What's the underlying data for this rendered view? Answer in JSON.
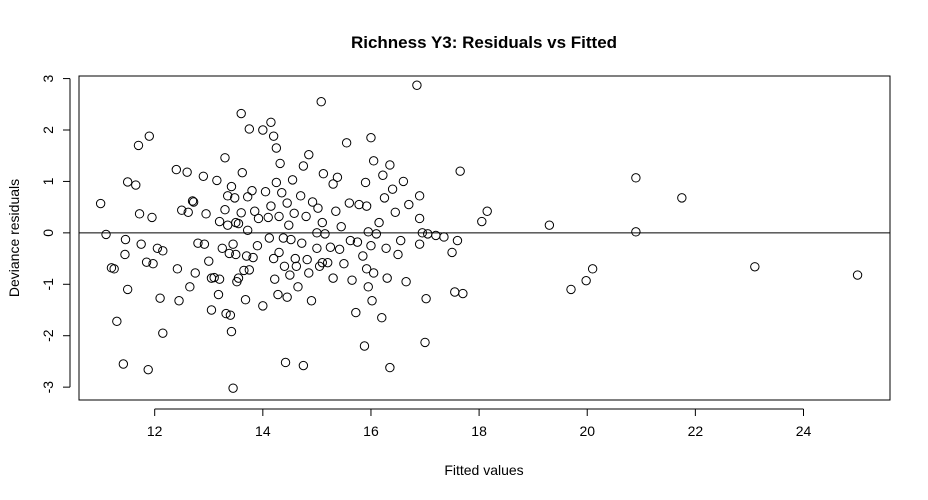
{
  "chart_data": {
    "type": "scatter",
    "title": "Richness Y3: Residuals vs Fitted",
    "xlabel": "Fitted values",
    "ylabel": "Deviance residuals",
    "xlim": [
      10.6,
      25.6
    ],
    "ylim": [
      -3.25,
      3.05
    ],
    "xticks": [
      12,
      14,
      16,
      18,
      20,
      22,
      24
    ],
    "yticks": [
      -3,
      -2,
      -1,
      0,
      1,
      2,
      3
    ],
    "reference_line_y": 0,
    "marker": "open-circle",
    "grid": false,
    "points": [
      [
        11.0,
        0.57
      ],
      [
        11.1,
        -0.03
      ],
      [
        11.2,
        -0.68
      ],
      [
        11.25,
        -0.7
      ],
      [
        11.3,
        -1.72
      ],
      [
        11.42,
        -2.55
      ],
      [
        11.45,
        -0.42
      ],
      [
        11.46,
        -0.13
      ],
      [
        11.5,
        0.99
      ],
      [
        11.5,
        -1.1
      ],
      [
        11.65,
        0.93
      ],
      [
        11.7,
        1.7
      ],
      [
        11.72,
        0.37
      ],
      [
        11.75,
        -0.22
      ],
      [
        11.85,
        -0.57
      ],
      [
        11.88,
        -2.66
      ],
      [
        11.9,
        1.88
      ],
      [
        11.95,
        0.3
      ],
      [
        11.97,
        -0.6
      ],
      [
        12.05,
        -0.3
      ],
      [
        12.1,
        -1.27
      ],
      [
        12.15,
        -1.95
      ],
      [
        12.15,
        -0.35
      ],
      [
        12.4,
        1.23
      ],
      [
        12.42,
        -0.7
      ],
      [
        12.45,
        -1.32
      ],
      [
        12.5,
        0.44
      ],
      [
        12.6,
        1.18
      ],
      [
        12.62,
        0.4
      ],
      [
        12.65,
        -1.05
      ],
      [
        12.7,
        0.62
      ],
      [
        12.72,
        0.6
      ],
      [
        12.75,
        -0.78
      ],
      [
        12.8,
        -0.2
      ],
      [
        12.9,
        1.1
      ],
      [
        12.92,
        -0.22
      ],
      [
        12.95,
        0.37
      ],
      [
        13.0,
        -0.55
      ],
      [
        13.05,
        -1.5
      ],
      [
        13.05,
        -0.88
      ],
      [
        13.1,
        -0.87
      ],
      [
        13.15,
        1.02
      ],
      [
        13.18,
        -1.2
      ],
      [
        13.2,
        -0.9
      ],
      [
        13.2,
        0.22
      ],
      [
        13.25,
        -0.3
      ],
      [
        13.3,
        0.45
      ],
      [
        13.3,
        1.46
      ],
      [
        13.32,
        -1.57
      ],
      [
        13.35,
        0.15
      ],
      [
        13.35,
        0.72
      ],
      [
        13.38,
        -0.4
      ],
      [
        13.4,
        -1.6
      ],
      [
        13.42,
        -1.92
      ],
      [
        13.42,
        0.9
      ],
      [
        13.45,
        -3.02
      ],
      [
        13.45,
        -0.22
      ],
      [
        13.48,
        0.68
      ],
      [
        13.5,
        -0.42
      ],
      [
        13.5,
        0.2
      ],
      [
        13.52,
        -0.95
      ],
      [
        13.55,
        0.18
      ],
      [
        13.55,
        -0.88
      ],
      [
        13.6,
        2.32
      ],
      [
        13.6,
        0.39
      ],
      [
        13.62,
        1.17
      ],
      [
        13.65,
        -0.73
      ],
      [
        13.68,
        -1.3
      ],
      [
        13.7,
        -0.45
      ],
      [
        13.72,
        0.05
      ],
      [
        13.72,
        0.7
      ],
      [
        13.75,
        2.02
      ],
      [
        13.75,
        -0.72
      ],
      [
        13.8,
        0.82
      ],
      [
        13.82,
        -0.48
      ],
      [
        13.85,
        0.42
      ],
      [
        13.9,
        -0.25
      ],
      [
        13.92,
        0.28
      ],
      [
        14.0,
        2.0
      ],
      [
        14.0,
        -1.42
      ],
      [
        14.05,
        0.8
      ],
      [
        14.1,
        0.3
      ],
      [
        14.12,
        -0.1
      ],
      [
        14.15,
        2.15
      ],
      [
        14.15,
        0.52
      ],
      [
        14.2,
        -0.5
      ],
      [
        14.2,
        1.88
      ],
      [
        14.22,
        -0.9
      ],
      [
        14.25,
        1.65
      ],
      [
        14.25,
        0.98
      ],
      [
        14.28,
        -1.2
      ],
      [
        14.3,
        0.32
      ],
      [
        14.3,
        -0.38
      ],
      [
        14.32,
        1.35
      ],
      [
        14.35,
        0.78
      ],
      [
        14.38,
        -0.1
      ],
      [
        14.4,
        -0.65
      ],
      [
        14.42,
        -2.52
      ],
      [
        14.45,
        0.58
      ],
      [
        14.45,
        -1.25
      ],
      [
        14.48,
        0.15
      ],
      [
        14.5,
        -0.82
      ],
      [
        14.52,
        -0.13
      ],
      [
        14.55,
        1.03
      ],
      [
        14.58,
        0.38
      ],
      [
        14.6,
        -0.5
      ],
      [
        14.62,
        -0.65
      ],
      [
        14.65,
        -1.05
      ],
      [
        14.7,
        0.72
      ],
      [
        14.72,
        -0.2
      ],
      [
        14.75,
        1.3
      ],
      [
        14.75,
        -2.58
      ],
      [
        14.8,
        0.32
      ],
      [
        14.82,
        -0.52
      ],
      [
        14.85,
        1.52
      ],
      [
        14.85,
        -0.78
      ],
      [
        14.9,
        -1.32
      ],
      [
        14.92,
        0.6
      ],
      [
        15.0,
        -0.3
      ],
      [
        15.0,
        0.0
      ],
      [
        15.02,
        0.48
      ],
      [
        15.05,
        -0.65
      ],
      [
        15.08,
        2.55
      ],
      [
        15.1,
        0.2
      ],
      [
        15.1,
        -0.58
      ],
      [
        15.12,
        1.15
      ],
      [
        15.15,
        -0.02
      ],
      [
        15.2,
        -0.58
      ],
      [
        15.25,
        -0.28
      ],
      [
        15.3,
        0.95
      ],
      [
        15.3,
        -0.88
      ],
      [
        15.35,
        0.42
      ],
      [
        15.38,
        1.08
      ],
      [
        15.42,
        -0.32
      ],
      [
        15.45,
        0.12
      ],
      [
        15.5,
        -0.6
      ],
      [
        15.55,
        1.75
      ],
      [
        15.6,
        0.58
      ],
      [
        15.62,
        -0.15
      ],
      [
        15.65,
        -0.92
      ],
      [
        15.72,
        -1.55
      ],
      [
        15.75,
        -0.18
      ],
      [
        15.78,
        0.55
      ],
      [
        15.85,
        -0.45
      ],
      [
        15.88,
        -2.2
      ],
      [
        15.9,
        0.98
      ],
      [
        15.92,
        -0.7
      ],
      [
        15.92,
        0.52
      ],
      [
        15.95,
        0.02
      ],
      [
        15.95,
        -1.05
      ],
      [
        16.0,
        1.85
      ],
      [
        16.0,
        -0.25
      ],
      [
        16.02,
        -1.32
      ],
      [
        16.05,
        1.4
      ],
      [
        16.05,
        -0.78
      ],
      [
        16.1,
        -0.02
      ],
      [
        16.15,
        0.2
      ],
      [
        16.2,
        -1.65
      ],
      [
        16.22,
        1.12
      ],
      [
        16.25,
        0.68
      ],
      [
        16.28,
        -0.3
      ],
      [
        16.3,
        -0.88
      ],
      [
        16.35,
        1.32
      ],
      [
        16.35,
        -2.62
      ],
      [
        16.4,
        0.85
      ],
      [
        16.45,
        0.4
      ],
      [
        16.5,
        -0.42
      ],
      [
        16.55,
        -0.15
      ],
      [
        16.6,
        1.0
      ],
      [
        16.65,
        -0.95
      ],
      [
        16.7,
        0.55
      ],
      [
        16.85,
        2.87
      ],
      [
        16.9,
        0.72
      ],
      [
        16.9,
        0.28
      ],
      [
        16.9,
        -0.22
      ],
      [
        16.95,
        0.0
      ],
      [
        17.0,
        -2.13
      ],
      [
        17.02,
        -1.28
      ],
      [
        17.05,
        -0.02
      ],
      [
        17.2,
        -0.05
      ],
      [
        17.35,
        -0.08
      ],
      [
        17.5,
        -0.38
      ],
      [
        17.55,
        -1.15
      ],
      [
        17.6,
        -0.15
      ],
      [
        17.65,
        1.2
      ],
      [
        17.7,
        -1.18
      ],
      [
        18.05,
        0.22
      ],
      [
        18.15,
        0.42
      ],
      [
        19.3,
        0.15
      ],
      [
        19.7,
        -1.1
      ],
      [
        19.98,
        -0.93
      ],
      [
        20.1,
        -0.7
      ],
      [
        20.9,
        1.07
      ],
      [
        20.9,
        0.02
      ],
      [
        21.75,
        0.68
      ],
      [
        23.1,
        -0.66
      ],
      [
        25.0,
        -0.82
      ]
    ]
  }
}
